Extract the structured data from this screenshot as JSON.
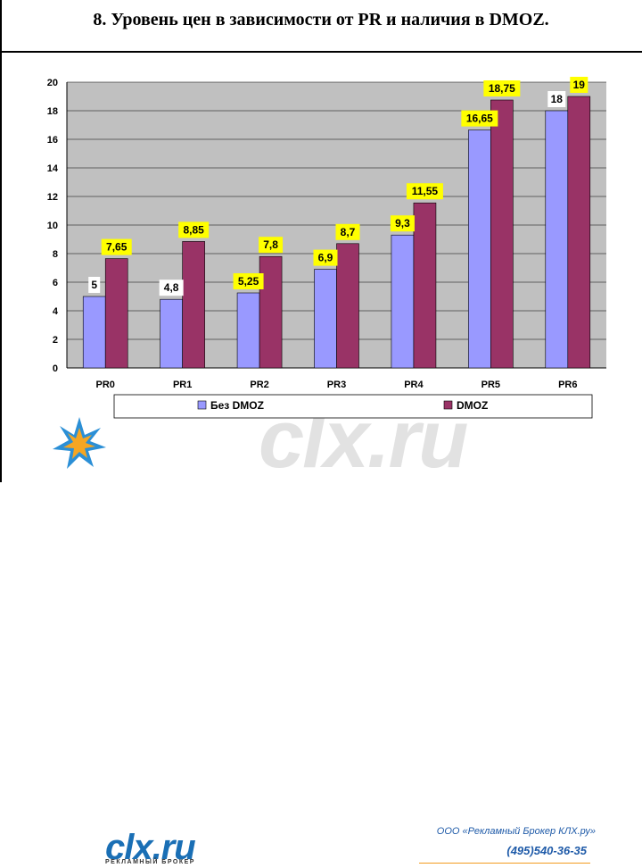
{
  "slide": {
    "title": "8. Уровень цен в зависимости от PR и наличия в DMOZ."
  },
  "chart_data": {
    "type": "bar",
    "categories": [
      "PR0",
      "PR1",
      "PR2",
      "PR3",
      "PR4",
      "PR5",
      "PR6"
    ],
    "series": [
      {
        "name": "Без DMOZ",
        "values": [
          5,
          4.8,
          5.25,
          6.9,
          9.3,
          16.65,
          18
        ],
        "labels": [
          "5",
          "4,8",
          "5,25",
          "6,9",
          "9,3",
          "16,65",
          "18"
        ],
        "color": "#9999ff"
      },
      {
        "name": "DMOZ",
        "values": [
          7.65,
          8.85,
          7.8,
          8.7,
          11.55,
          18.75,
          19
        ],
        "labels": [
          "7,65",
          "8,85",
          "7,8",
          "8,7",
          "11,55",
          "18,75",
          "19"
        ],
        "color": "#993366"
      }
    ],
    "yticks": [
      0,
      2,
      4,
      6,
      8,
      10,
      12,
      14,
      16,
      18,
      20
    ],
    "ylim": [
      0,
      20
    ],
    "grid": true,
    "legend_position": "bottom",
    "colors": {
      "plot_bg": "#c0c0c0",
      "label_bg": "#ffff00",
      "label_bg_alt": "#ffffff"
    }
  },
  "footer": {
    "logo_text": "clx.ru",
    "logo_subtext": "РЕКЛАМНЫЙ БРОКЕР",
    "company": "ООО «Рекламный Брокер КЛХ.ру»",
    "phone": "(495)540-36-35",
    "watermark": "clx.ru",
    "logo_icon": "star-burst-icon"
  }
}
